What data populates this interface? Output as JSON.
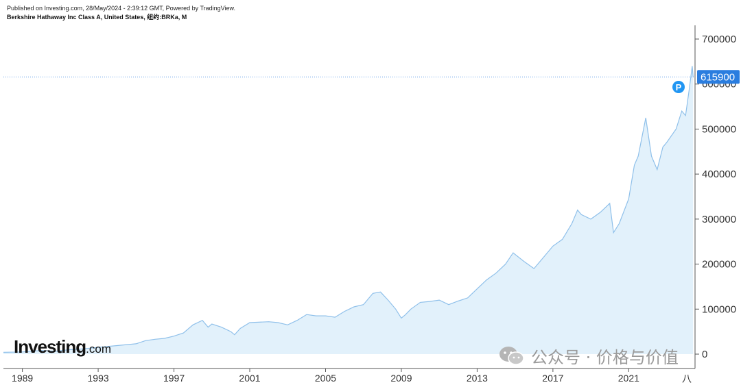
{
  "header": {
    "published": "Published on Investing.com, 28/May/2024 - 2:39:12 GMT, Powered by TradingView.",
    "instrument": "Berkshire Hathaway Inc Class A, United States, 纽约:BRKa, M"
  },
  "logo": {
    "main": "Investing",
    "domain": ".com"
  },
  "watermark": {
    "text": "公众号 · 价格与价值"
  },
  "price_marker": {
    "label": "P"
  },
  "colors": {
    "line": "#8fc0ea",
    "fill": "#e2f1fb",
    "price_tag": "#2a7ddf",
    "marker": "#2196f3"
  },
  "chart_data": {
    "type": "area",
    "title": "Berkshire Hathaway Inc Class A, United States, 纽约:BRKa, M",
    "xlabel": "",
    "ylabel": "",
    "xlim": [
      1988.0,
      2024.5
    ],
    "ylim": [
      0,
      700000
    ],
    "x_ticks": [
      1989,
      1993,
      1997,
      2001,
      2005,
      2009,
      2013,
      2017,
      2021
    ],
    "x_tick_labels": [
      "1989",
      "1993",
      "1997",
      "2001",
      "2005",
      "2009",
      "2013",
      "2017",
      "2021"
    ],
    "x_extra_label": "八",
    "y_ticks": [
      0,
      100000,
      200000,
      300000,
      400000,
      500000,
      600000,
      700000
    ],
    "y_tick_labels": [
      "0",
      "100000",
      "200000",
      "300000",
      "400000",
      "500000",
      "600000",
      "700000"
    ],
    "last_price": 615900,
    "last_price_label": "615900",
    "grid": false,
    "series": [
      {
        "x": [
          1988.0,
          1989.0,
          1990.0,
          1990.8,
          1991.5,
          1992.0,
          1993.0,
          1994.0,
          1995.0,
          1995.5,
          1996.0,
          1996.5,
          1997.0,
          1997.5,
          1998.0,
          1998.5,
          1998.8,
          1999.0,
          1999.5,
          2000.0,
          2000.2,
          2000.5,
          2001.0,
          2002.0,
          2002.5,
          2003.0,
          2003.5,
          2004.0,
          2004.5,
          2005.0,
          2005.5,
          2006.0,
          2006.5,
          2007.0,
          2007.5,
          2007.9,
          2008.3,
          2008.7,
          2009.0,
          2009.2,
          2009.5,
          2010.0,
          2010.5,
          2011.0,
          2011.5,
          2012.0,
          2012.5,
          2013.0,
          2013.5,
          2014.0,
          2014.5,
          2014.9,
          2015.5,
          2016.0,
          2016.5,
          2017.0,
          2017.5,
          2018.0,
          2018.3,
          2018.5,
          2019.0,
          2019.5,
          2020.0,
          2020.2,
          2020.5,
          2021.0,
          2021.3,
          2021.5,
          2021.9,
          2022.2,
          2022.5,
          2022.8,
          2023.0,
          2023.5,
          2023.8,
          2024.0,
          2024.2,
          2024.35,
          2024.4
        ],
        "y": [
          4000,
          4800,
          8000,
          6500,
          10000,
          11000,
          15000,
          19000,
          23000,
          30000,
          33000,
          35000,
          40000,
          47000,
          65000,
          75000,
          60000,
          67000,
          60000,
          50000,
          43000,
          57000,
          70000,
          72000,
          70000,
          65000,
          75000,
          88000,
          85000,
          85000,
          82000,
          95000,
          105000,
          110000,
          135000,
          138000,
          120000,
          100000,
          80000,
          87000,
          100000,
          115000,
          117000,
          120000,
          110000,
          118000,
          125000,
          145000,
          165000,
          180000,
          200000,
          225000,
          205000,
          190000,
          215000,
          240000,
          255000,
          290000,
          320000,
          310000,
          300000,
          315000,
          335000,
          270000,
          290000,
          345000,
          420000,
          440000,
          525000,
          440000,
          410000,
          460000,
          470000,
          500000,
          540000,
          530000,
          590000,
          640000,
          615900
        ]
      }
    ]
  }
}
